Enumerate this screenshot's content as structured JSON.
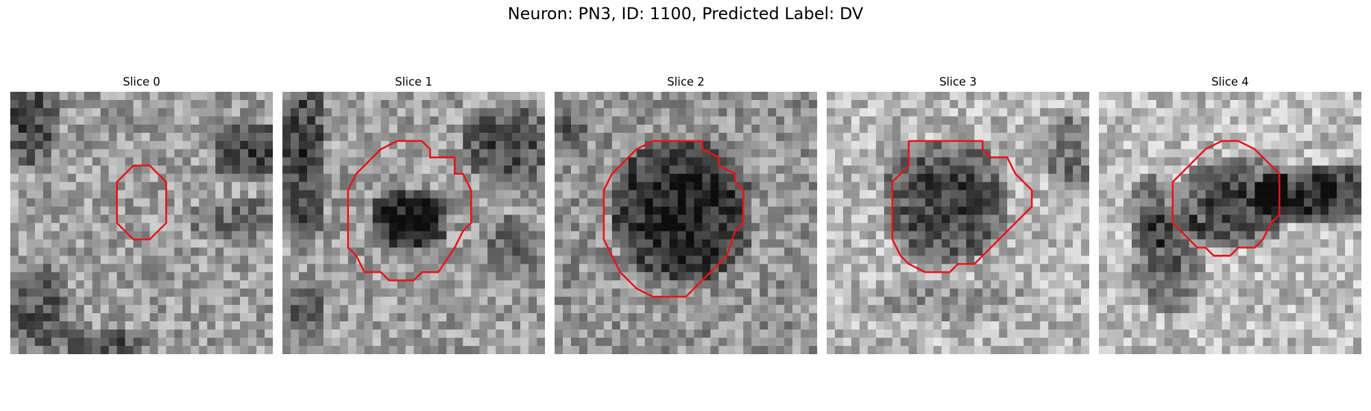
{
  "figure": {
    "title": "Neuron: PN3, ID: 1100, Predicted Label: DV"
  },
  "panels": [
    {
      "title": "Slice 0",
      "contour_color": "#e8141a"
    },
    {
      "title": "Slice 1",
      "contour_color": "#e8141a"
    },
    {
      "title": "Slice 2",
      "contour_color": "#e8141a"
    },
    {
      "title": "Slice 3",
      "contour_color": "#e8141a"
    },
    {
      "title": "Slice 4",
      "contour_color": "#e8141a"
    }
  ]
}
